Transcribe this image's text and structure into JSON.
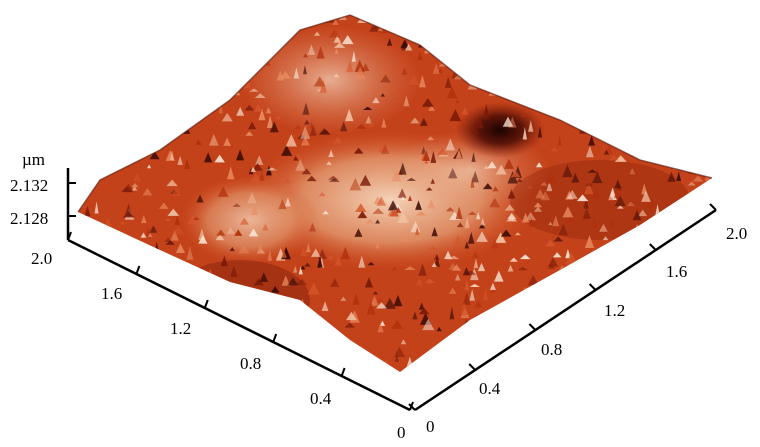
{
  "chart_data": {
    "type": "surface",
    "title": "",
    "z_axis": {
      "unit": "µm",
      "ticks": [
        "2.132",
        "2.128"
      ]
    },
    "left_axis": {
      "ticks": [
        "2.0",
        "1.6",
        "1.2",
        "0.8",
        "0.4",
        "0"
      ],
      "range": [
        0,
        2.0
      ]
    },
    "right_axis": {
      "ticks": [
        "0",
        "0.4",
        "0.8",
        "1.2",
        "1.6",
        "2.0"
      ],
      "range": [
        0,
        2.0
      ]
    },
    "colormap": [
      "#3a0a05",
      "#7a1a08",
      "#b0300c",
      "#d4552a",
      "#e88a60",
      "#f2c2a2",
      "#f8e2d0"
    ]
  }
}
